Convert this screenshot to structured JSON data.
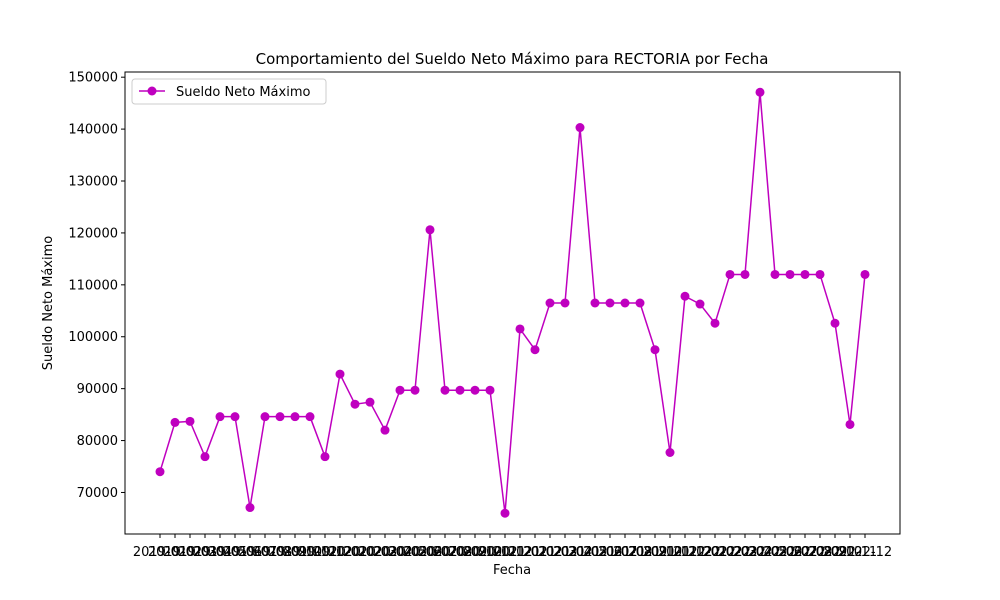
{
  "chart_data": {
    "type": "line",
    "title": "Comportamiento del Sueldo Neto Máximo para RECTORIA por Fecha",
    "xlabel": "Fecha",
    "ylabel": "Sueldo Neto Máximo",
    "ylim": [
      62000,
      151000
    ],
    "yticks": [
      70000,
      80000,
      90000,
      100000,
      110000,
      120000,
      130000,
      140000,
      150000
    ],
    "x_tick_labels": [
      "2019-01",
      "2019-02",
      "2019-03",
      "2019-04",
      "2019-05",
      "2019-06",
      "2019-07",
      "2019-08",
      "2019-09",
      "2019-10",
      "2019-11",
      "2019-12",
      "2020-01",
      "2020-02",
      "2020-03",
      "2020-04",
      "2020-05",
      "2020-06",
      "2020-07",
      "2020-08",
      "2020-09",
      "2020-10",
      "2020-11",
      "2020-12",
      "2021-01",
      "2021-02",
      "2021-03",
      "2021-04",
      "2021-05",
      "2021-06",
      "2021-07",
      "2021-08",
      "2021-09",
      "2021-10",
      "2021-11",
      "2021-12",
      "2022-01",
      "2022-02",
      "2022-03",
      "2022-04",
      "2022-05",
      "2022-06",
      "2022-07",
      "2022-08",
      "2022-09",
      "2022-10",
      "2022-11",
      "2022-12"
    ],
    "grid": false,
    "legend_position": "upper-left",
    "series": [
      {
        "name": "Sueldo Neto Máximo",
        "color": "#bf00bf",
        "marker": "circle",
        "values": [
          74000,
          83500,
          83700,
          76900,
          84600,
          84600,
          67100,
          84600,
          84600,
          84600,
          84600,
          76900,
          92800,
          87000,
          87400,
          82000,
          89700,
          89700,
          120600,
          89700,
          89700,
          89700,
          89700,
          66000,
          101500,
          97500,
          106500,
          106500,
          140300,
          106500,
          106500,
          106500,
          106500,
          97500,
          77700,
          107800,
          106300,
          102600,
          112000,
          112000,
          147100,
          112000,
          112000,
          112000,
          112000,
          102600,
          83100,
          112000
        ]
      }
    ]
  }
}
